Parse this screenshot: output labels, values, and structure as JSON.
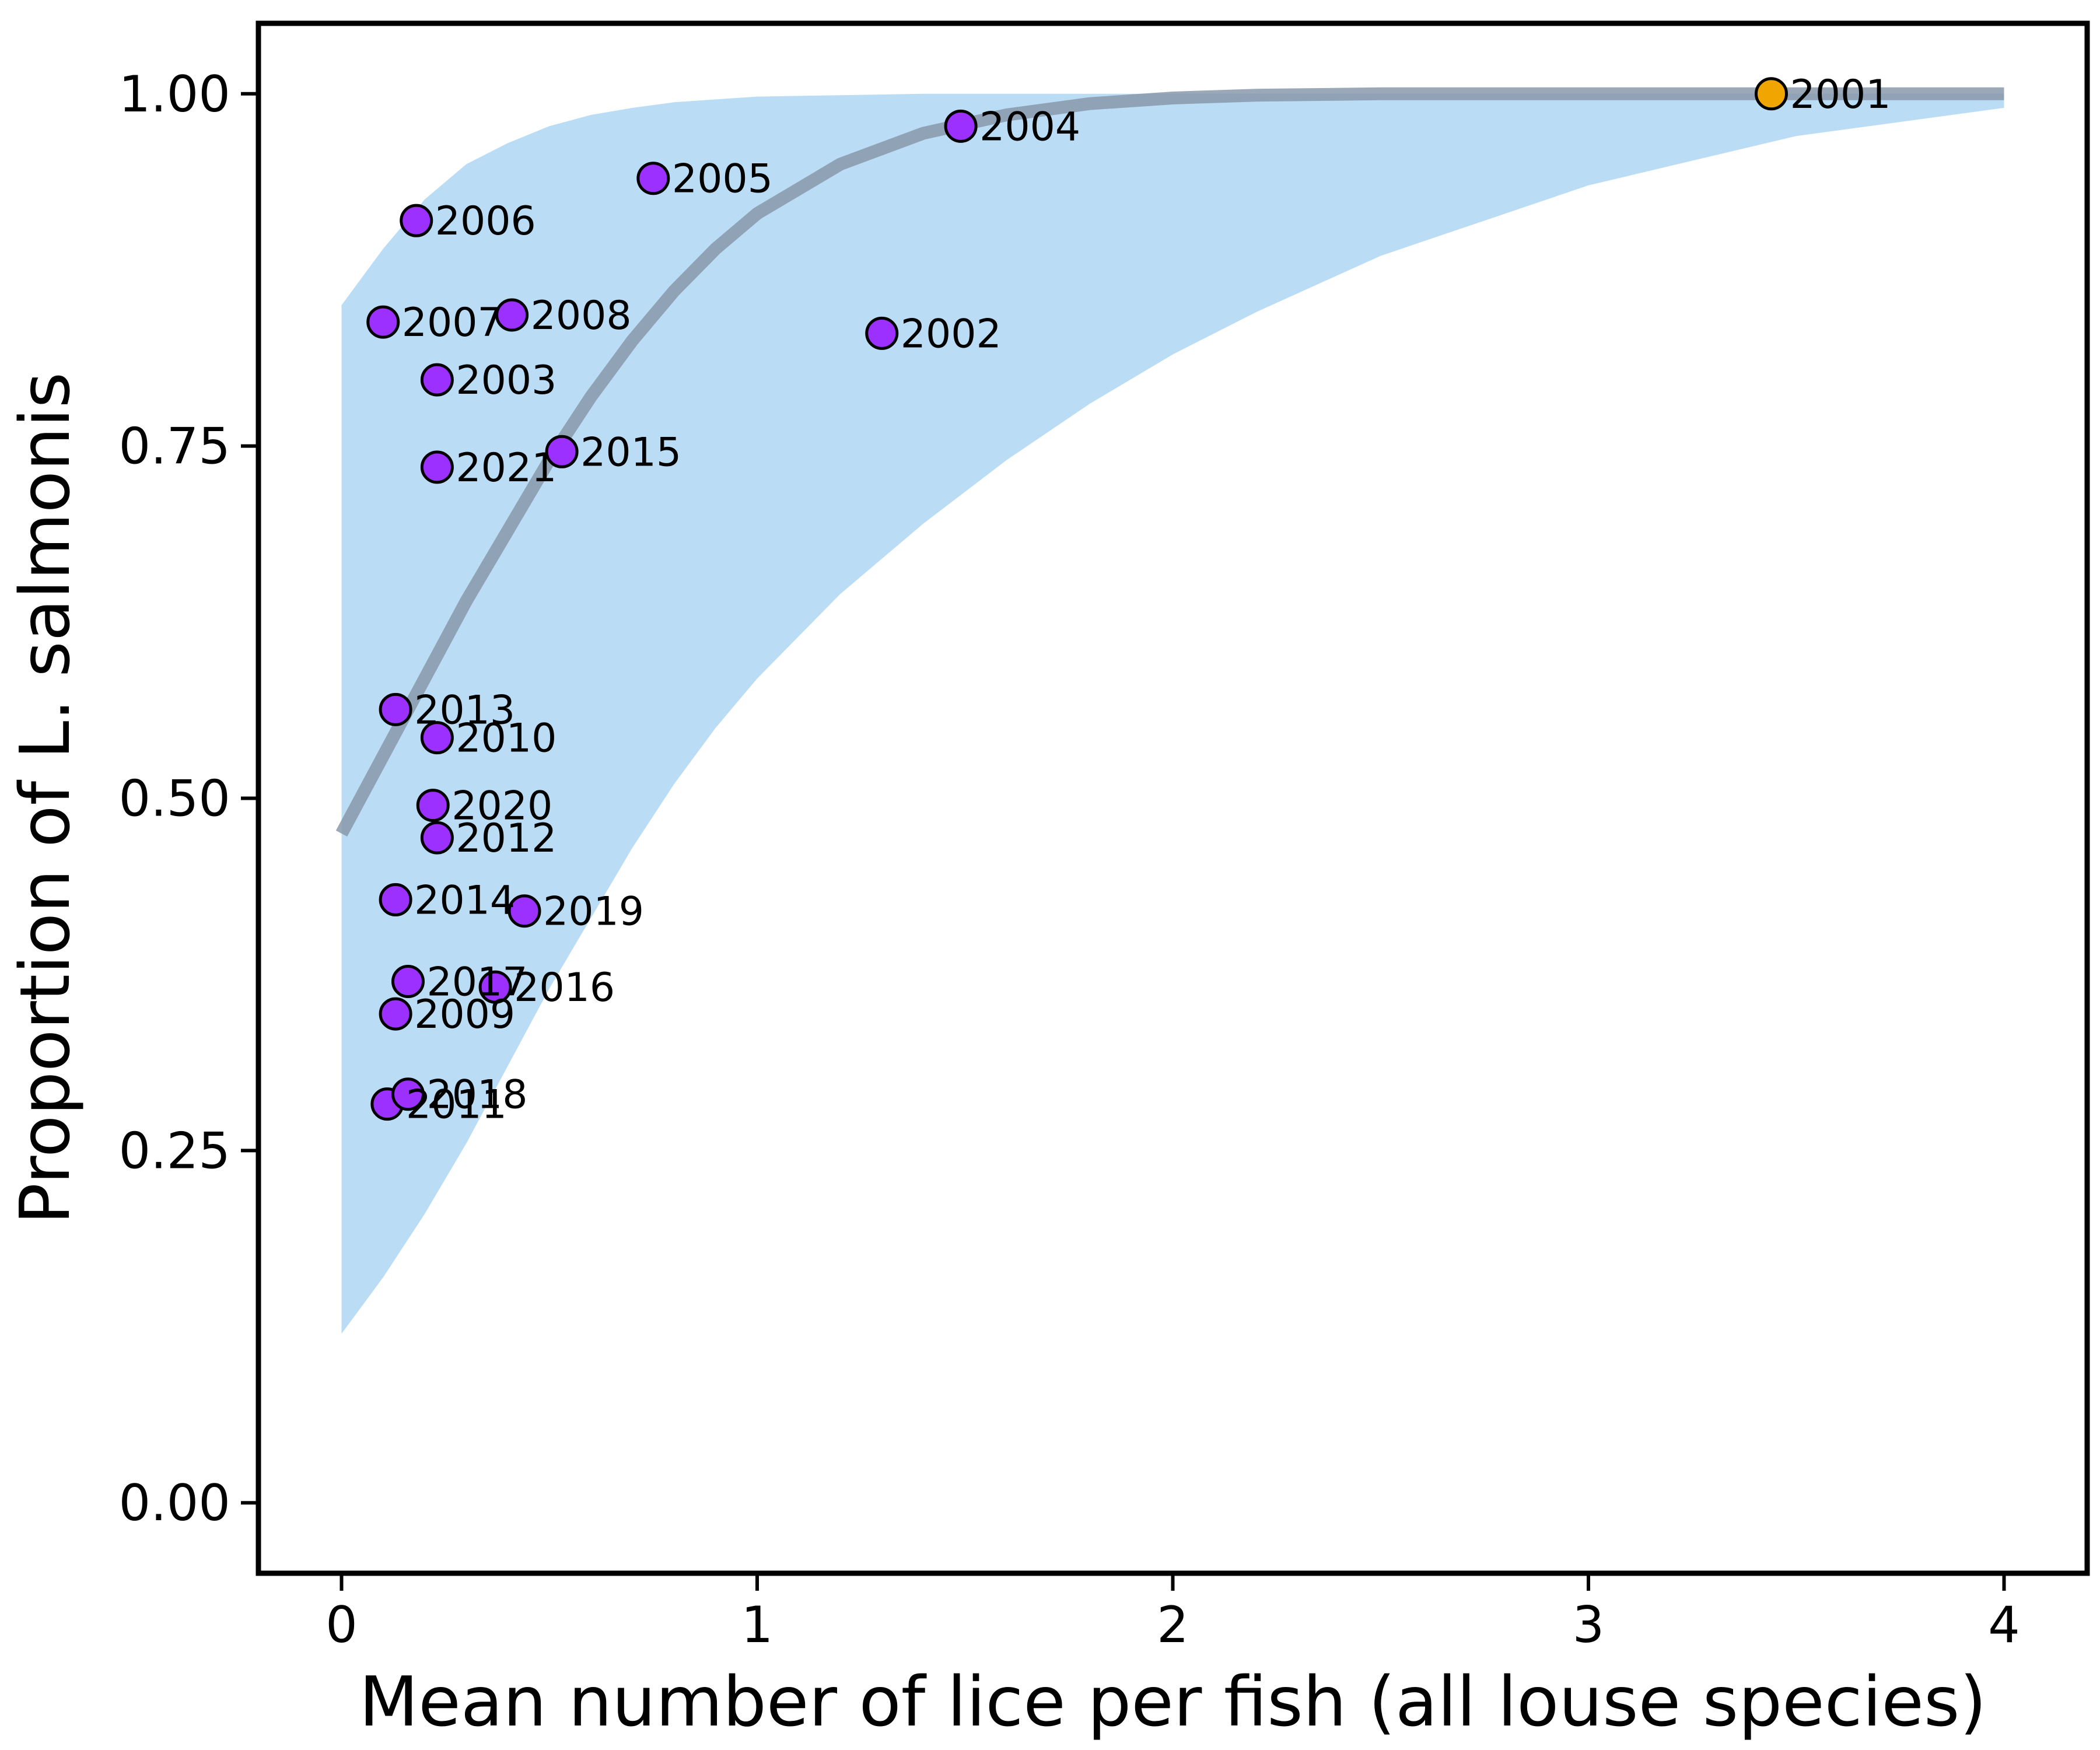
{
  "chart_data": {
    "type": "scatter",
    "title": "",
    "xlabel": "Mean number of lice per fish (all louse species)",
    "ylabel": "Proportion of L. salmonis",
    "xlim": [
      -0.2,
      4.2
    ],
    "ylim": [
      -0.05,
      1.05
    ],
    "x_ticks": [
      {
        "value": 0,
        "label": "0"
      },
      {
        "value": 1,
        "label": "1"
      },
      {
        "value": 2,
        "label": "2"
      },
      {
        "value": 3,
        "label": "3"
      },
      {
        "value": 4,
        "label": "4"
      }
    ],
    "y_ticks": [
      {
        "value": 0,
        "label": "0.00"
      },
      {
        "value": 0.25,
        "label": "0.25"
      },
      {
        "value": 0.5,
        "label": "0.50"
      },
      {
        "value": 0.75,
        "label": "0.75"
      },
      {
        "value": 1,
        "label": "1.00"
      }
    ],
    "grid": false,
    "colors": {
      "point": "#9b30ff",
      "highlight_point": "#f0a500",
      "fit_line": "#8899aa",
      "ci_band": "#bbdcf5"
    },
    "fit_curve": {
      "x": [
        0,
        0.1,
        0.2,
        0.3,
        0.4,
        0.5,
        0.6,
        0.7,
        0.8,
        0.9,
        1.0,
        1.2,
        1.4,
        1.6,
        1.8,
        2.0,
        2.2,
        2.5,
        3.0,
        3.5,
        4.0
      ],
      "y": [
        0.475,
        0.53,
        0.585,
        0.64,
        0.69,
        0.74,
        0.785,
        0.825,
        0.86,
        0.89,
        0.915,
        0.95,
        0.972,
        0.985,
        0.993,
        0.997,
        0.999,
        1.0,
        1.0,
        1.0,
        1.0
      ],
      "lower": [
        0.12,
        0.16,
        0.205,
        0.255,
        0.31,
        0.365,
        0.415,
        0.465,
        0.51,
        0.55,
        0.585,
        0.645,
        0.695,
        0.74,
        0.78,
        0.815,
        0.845,
        0.885,
        0.935,
        0.97,
        0.99
      ],
      "upper": [
        0.85,
        0.89,
        0.925,
        0.95,
        0.965,
        0.977,
        0.985,
        0.99,
        0.994,
        0.996,
        0.998,
        0.999,
        1.0,
        1.0,
        1.0,
        1.0,
        1.0,
        1.0,
        1.0,
        1.0,
        1.0
      ]
    },
    "points": [
      {
        "label": "2001",
        "x": 3.44,
        "y": 1.0,
        "highlight": true
      },
      {
        "label": "2002",
        "x": 1.3,
        "y": 0.83
      },
      {
        "label": "2003",
        "x": 0.23,
        "y": 0.797
      },
      {
        "label": "2004",
        "x": 1.49,
        "y": 0.977
      },
      {
        "label": "2005",
        "x": 0.75,
        "y": 0.94
      },
      {
        "label": "2006",
        "x": 0.18,
        "y": 0.91
      },
      {
        "label": "2007",
        "x": 0.1,
        "y": 0.838
      },
      {
        "label": "2008",
        "x": 0.41,
        "y": 0.843
      },
      {
        "label": "2009",
        "x": 0.13,
        "y": 0.347
      },
      {
        "label": "2010",
        "x": 0.23,
        "y": 0.543
      },
      {
        "label": "2011",
        "x": 0.11,
        "y": 0.283
      },
      {
        "label": "2012",
        "x": 0.23,
        "y": 0.472
      },
      {
        "label": "2013",
        "x": 0.13,
        "y": 0.563
      },
      {
        "label": "2014",
        "x": 0.13,
        "y": 0.428
      },
      {
        "label": "2015",
        "x": 0.53,
        "y": 0.746
      },
      {
        "label": "2016",
        "x": 0.37,
        "y": 0.366
      },
      {
        "label": "2017",
        "x": 0.16,
        "y": 0.37
      },
      {
        "label": "2018",
        "x": 0.16,
        "y": 0.29
      },
      {
        "label": "2019",
        "x": 0.44,
        "y": 0.42
      },
      {
        "label": "2020",
        "x": 0.22,
        "y": 0.495
      },
      {
        "label": "2021",
        "x": 0.23,
        "y": 0.735
      }
    ]
  }
}
